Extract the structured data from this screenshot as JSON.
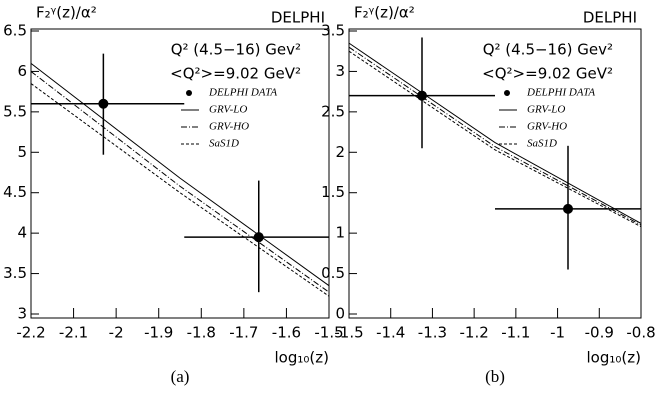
{
  "chart_data": [
    {
      "type": "line",
      "caption": "(a)",
      "ylabel": "F₂ᵞ(z)/α²",
      "xlabel": "log₁₀(z)",
      "experiment": "DELPHI",
      "annotations": [
        "Q² (4.5−16) Gev²",
        "<Q²>=9.02 GeV²"
      ],
      "xlim": [
        -2.2,
        -1.5
      ],
      "xticks": [
        -2.2,
        -2.1,
        -2,
        -1.9,
        -1.8,
        -1.7,
        -1.6,
        -1.5
      ],
      "ylim": [
        3,
        6.5
      ],
      "yticks": [
        3,
        3.5,
        4,
        4.5,
        5,
        5.5,
        6,
        6.5
      ],
      "series": [
        {
          "name": "DELPHI DATA",
          "style": "points",
          "color": "#000000",
          "x": [
            -2.03,
            -1.665
          ],
          "values": [
            5.6,
            3.95
          ],
          "xerr_lo": [
            -2.2,
            -1.84
          ],
          "xerr_hi": [
            -1.84,
            -1.5
          ],
          "yerr_lo": [
            4.97,
            3.27
          ],
          "yerr_hi": [
            6.22,
            4.65
          ]
        },
        {
          "name": "GRV-LO",
          "style": "solid",
          "color": "#000000",
          "x": [
            -2.2,
            -1.85,
            -1.5
          ],
          "values": [
            6.1,
            4.68,
            3.35
          ]
        },
        {
          "name": "GRV-HO",
          "style": "dashdot",
          "color": "#000000",
          "x": [
            -2.2,
            -1.85,
            -1.5
          ],
          "values": [
            6.0,
            4.58,
            3.27
          ]
        },
        {
          "name": "SaS1D",
          "style": "dashed",
          "color": "#000000",
          "x": [
            -2.2,
            -1.85,
            -1.5
          ],
          "values": [
            5.85,
            4.5,
            3.22
          ]
        }
      ]
    },
    {
      "type": "line",
      "caption": "(b)",
      "ylabel": "F₂ᵞ(z)/α²",
      "xlabel": "log₁₀(z)",
      "experiment": "DELPHI",
      "annotations": [
        "Q² (4.5−16) Gev²",
        "<Q²>=9.02 GeV²"
      ],
      "xlim": [
        -1.5,
        -0.8
      ],
      "xticks": [
        -1.5,
        -1.4,
        -1.3,
        -1.2,
        -1.1,
        -1,
        -0.9,
        -0.8
      ],
      "ylim": [
        0,
        3.5
      ],
      "yticks": [
        0,
        0.5,
        1,
        1.5,
        2,
        2.5,
        3,
        3.5
      ],
      "series": [
        {
          "name": "DELPHI DATA",
          "style": "points",
          "color": "#000000",
          "x": [
            -1.325,
            -0.975
          ],
          "values": [
            2.7,
            1.3
          ],
          "xerr_lo": [
            -1.5,
            -1.15
          ],
          "xerr_hi": [
            -1.15,
            -0.8
          ],
          "yerr_lo": [
            2.05,
            0.55
          ],
          "yerr_hi": [
            3.42,
            2.08
          ]
        },
        {
          "name": "GRV-LO",
          "style": "solid",
          "color": "#000000",
          "x": [
            -1.5,
            -1.15,
            -0.8
          ],
          "values": [
            3.35,
            2.12,
            1.12
          ]
        },
        {
          "name": "GRV-HO",
          "style": "dashdot",
          "color": "#000000",
          "x": [
            -1.5,
            -1.15,
            -0.8
          ],
          "values": [
            3.3,
            2.07,
            1.1
          ]
        },
        {
          "name": "SaS1D",
          "style": "dashed",
          "color": "#000000",
          "x": [
            -1.5,
            -1.15,
            -0.8
          ],
          "values": [
            3.25,
            2.03,
            1.08
          ]
        }
      ]
    }
  ]
}
